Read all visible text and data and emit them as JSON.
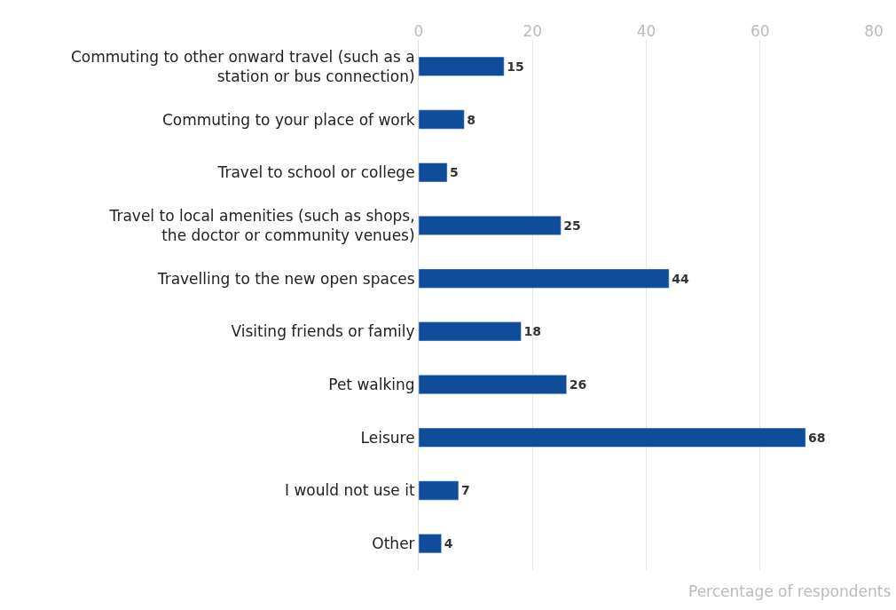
{
  "chart_data": {
    "type": "bar",
    "orientation": "horizontal",
    "xlabel": "Percentage of respondents",
    "categories": [
      "Commuting to other onward travel (such as a station or bus connection)",
      "Commuting to your place of work",
      "Travel to school or college",
      "Travel to local amenities (such as shops, the doctor or community venues)",
      "Travelling to the new open spaces",
      "Visiting friends or family",
      "Pet walking",
      "Leisure",
      "I would not use it",
      "Other"
    ],
    "values": [
      15,
      8,
      5,
      25,
      44,
      18,
      26,
      68,
      7,
      4
    ],
    "color": "#0f4c9a",
    "xlim": [
      0,
      80
    ],
    "xticks": [
      0,
      20,
      40,
      60,
      80
    ],
    "grid": "x",
    "data_labels": true,
    "legend": false
  }
}
